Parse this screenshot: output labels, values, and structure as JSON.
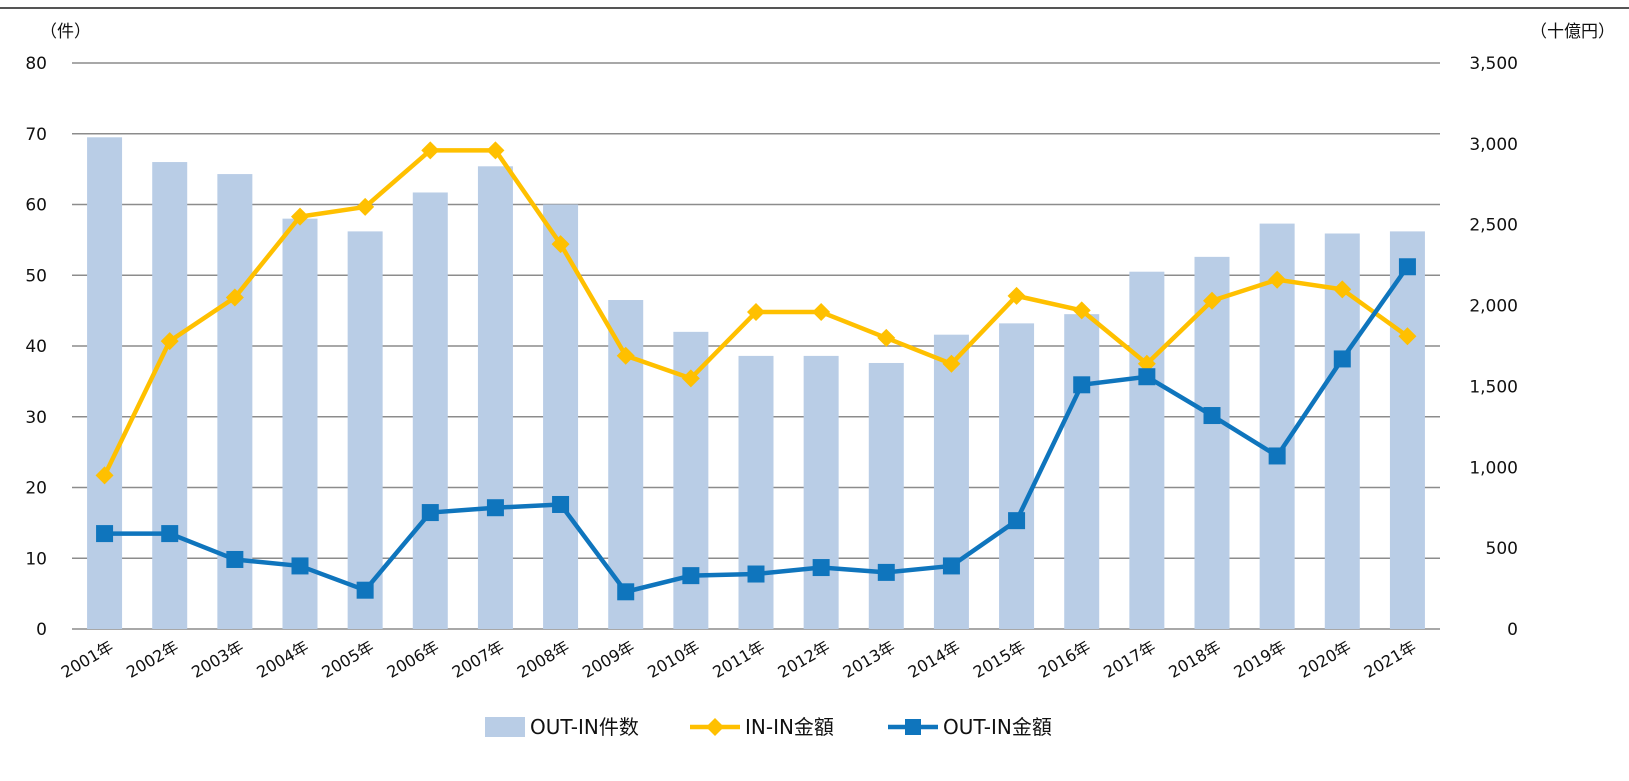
{
  "chart_data": {
    "type": "bar",
    "left_unit": "（件）",
    "right_unit": "（十億円）",
    "categories": [
      "2001年",
      "2002年",
      "2003年",
      "2004年",
      "2005年",
      "2006年",
      "2007年",
      "2008年",
      "2009年",
      "2010年",
      "2011年",
      "2012年",
      "2013年",
      "2014年",
      "2015年",
      "2016年",
      "2017年",
      "2018年",
      "2019年",
      "2020年",
      "2021年"
    ],
    "y_left": {
      "min": 0,
      "max": 80,
      "ticks": [
        "0",
        "10",
        "20",
        "30",
        "40",
        "50",
        "60",
        "70",
        "80"
      ]
    },
    "y_right": {
      "min": 0,
      "max": 3500,
      "ticks": [
        "0",
        "500",
        "1,000",
        "1,500",
        "2,000",
        "2,500",
        "3,000",
        "3,500"
      ]
    },
    "grid": true,
    "legend_position": "bottom",
    "series": [
      {
        "name": "OUT-IN件数",
        "type": "bar",
        "axis": "left",
        "color": "#b9cde6",
        "values": [
          69.5,
          66,
          64.3,
          58,
          56.2,
          61.7,
          65.4,
          60,
          46.5,
          42,
          38.6,
          38.6,
          37.6,
          41.6,
          43.2,
          44.5,
          50.5,
          52.6,
          57.3,
          55.9,
          56.2
        ]
      },
      {
        "name": "IN-IN金額",
        "type": "line",
        "axis": "right",
        "marker": "diamond",
        "color": "#ffc000",
        "values": [
          950,
          1780,
          2050,
          2550,
          2610,
          2960,
          2960,
          2380,
          1690,
          1550,
          1960,
          1960,
          1800,
          1640,
          2060,
          1970,
          1640,
          2030,
          2160,
          2100,
          1810
        ]
      },
      {
        "name": "OUT-IN金額",
        "type": "line",
        "axis": "right",
        "marker": "square",
        "color": "#0f75bd",
        "values": [
          590,
          590,
          430,
          390,
          240,
          720,
          750,
          770,
          230,
          330,
          340,
          380,
          350,
          390,
          670,
          1510,
          1560,
          1320,
          1070,
          1670,
          2240
        ]
      }
    ]
  }
}
